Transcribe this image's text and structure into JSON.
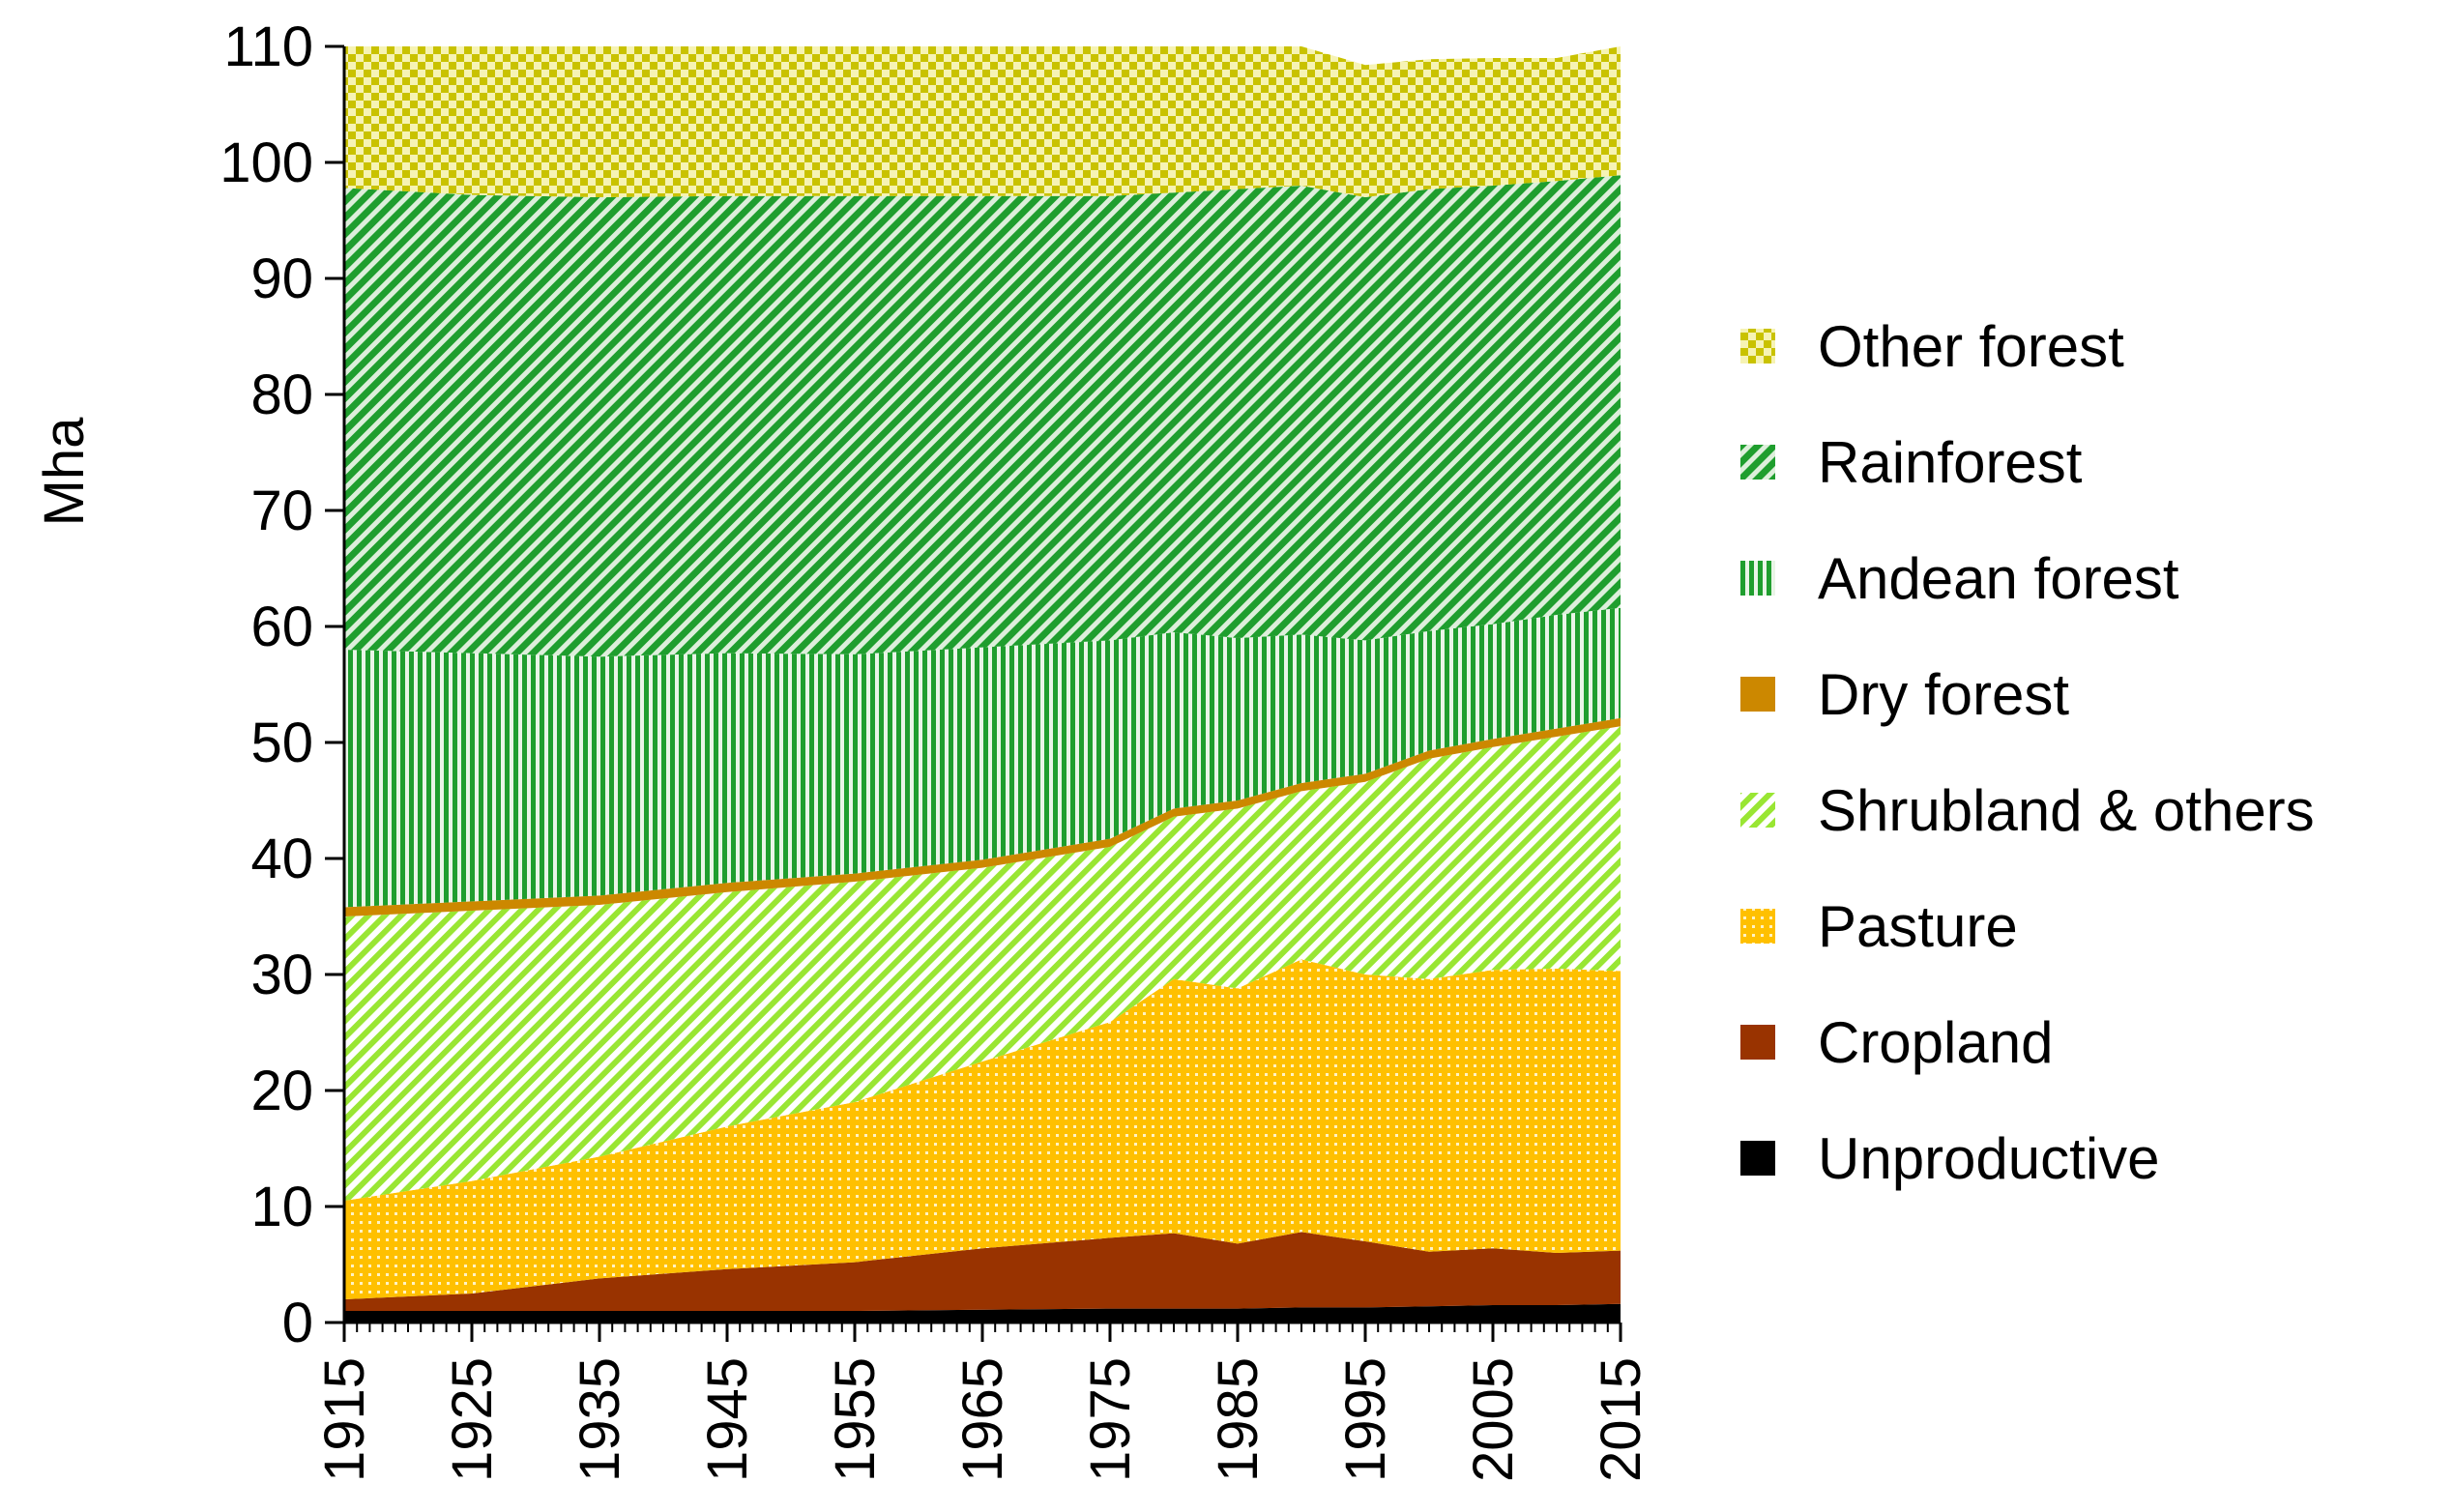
{
  "chart_data": {
    "type": "area",
    "stacked": true,
    "xlabel": "",
    "ylabel": "Mha",
    "ylim": [
      0,
      110
    ],
    "yticks": [
      "0",
      "10",
      "20",
      "30",
      "40",
      "50",
      "60",
      "70",
      "80",
      "90",
      "100",
      "110"
    ],
    "xticks": [
      "1915",
      "1925",
      "1935",
      "1945",
      "1955",
      "1965",
      "1975",
      "1985",
      "1995",
      "2005",
      "2015"
    ],
    "x": [
      1915,
      1925,
      1935,
      1945,
      1955,
      1965,
      1975,
      1980,
      1985,
      1990,
      1995,
      2000,
      2005,
      2010,
      2015
    ],
    "legend_position": "right",
    "grid": false,
    "series": [
      {
        "name": "Unproductive",
        "color": "#000000",
        "values": [
          1.0,
          1.0,
          1.0,
          1.0,
          1.0,
          1.1,
          1.2,
          1.2,
          1.2,
          1.3,
          1.3,
          1.4,
          1.5,
          1.5,
          1.6
        ]
      },
      {
        "name": "Cropland",
        "color": "#993300",
        "values": [
          1.0,
          1.5,
          2.8,
          3.6,
          4.2,
          5.3,
          6.1,
          6.5,
          5.6,
          6.5,
          5.7,
          4.7,
          4.9,
          4.5,
          4.6
        ]
      },
      {
        "name": "Pasture",
        "color": "#FFC000",
        "values": [
          8.5,
          9.7,
          10.5,
          12.3,
          13.8,
          16.1,
          18.6,
          21.9,
          22.0,
          23.5,
          23.0,
          23.5,
          24.0,
          24.5,
          24.1
        ]
      },
      {
        "name": "Shrubland & others",
        "color": "#99E633",
        "values": [
          24.5,
          23.3,
          21.7,
          20.2,
          19.0,
          16.7,
          15.1,
          14.0,
          15.5,
          14.5,
          16.6,
          19.0,
          19.2,
          20.0,
          21.1
        ]
      },
      {
        "name": "Dry forest",
        "color": "#CC8800",
        "values": [
          0.8,
          0.8,
          0.8,
          0.8,
          0.7,
          0.7,
          0.7,
          0.7,
          0.7,
          0.7,
          0.7,
          0.7,
          0.7,
          0.7,
          0.7
        ]
      },
      {
        "name": "Andean forest",
        "color": "#1F9E2E",
        "values": [
          22.2,
          21.4,
          20.6,
          19.8,
          18.9,
          18.3,
          17.1,
          15.2,
          14.0,
          12.8,
          11.5,
          10.3,
          9.9,
          9.8,
          9.5
        ]
      },
      {
        "name": "Rainforest",
        "color": "#1F9E2E",
        "values": [
          39.8,
          39.5,
          39.6,
          39.4,
          39.5,
          38.9,
          38.3,
          37.9,
          38.7,
          38.7,
          38.2,
          38.1,
          37.8,
          37.4,
          37.3
        ]
      },
      {
        "name": "Other forest",
        "color": "#C8C800",
        "values": [
          12.2,
          12.8,
          13.0,
          12.9,
          12.9,
          12.9,
          12.9,
          12.6,
          12.3,
          12.0,
          11.4,
          11.2,
          11.0,
          10.6,
          11.1
        ]
      }
    ],
    "legend_order": [
      "Other forest",
      "Rainforest",
      "Andean forest",
      "Dry forest",
      "Shrubland & others",
      "Pasture",
      "Cropland",
      "Unproductive"
    ]
  }
}
